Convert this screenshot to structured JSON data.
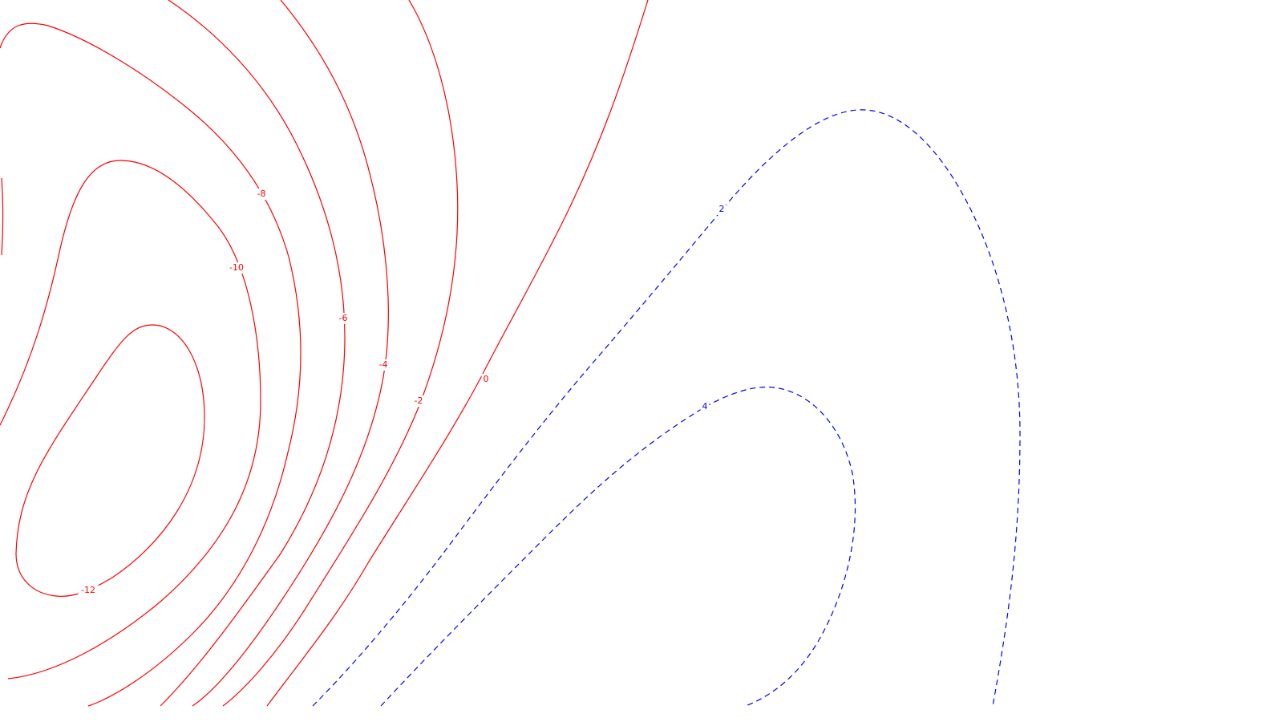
{
  "chart_data": {
    "type": "contour",
    "title": "",
    "xlabel": "",
    "ylabel": "",
    "grid": false,
    "negative_style": {
      "color": "#ff0000",
      "dash": "solid"
    },
    "positive_style": {
      "color": "#0000ff",
      "dash": "dashed"
    },
    "levels": [
      {
        "value": -12,
        "label": "-12",
        "sign": "negative"
      },
      {
        "value": -10,
        "label": "-10",
        "sign": "negative"
      },
      {
        "value": -8,
        "label": "-8",
        "sign": "negative"
      },
      {
        "value": -6,
        "label": "-6",
        "sign": "negative"
      },
      {
        "value": -4,
        "label": "-4",
        "sign": "negative"
      },
      {
        "value": -2,
        "label": "-2",
        "sign": "negative"
      },
      {
        "value": 0,
        "label": "0",
        "sign": "negative"
      },
      {
        "value": 2,
        "label": "2",
        "sign": "positive"
      },
      {
        "value": 4,
        "label": "4",
        "sign": "positive"
      }
    ]
  }
}
